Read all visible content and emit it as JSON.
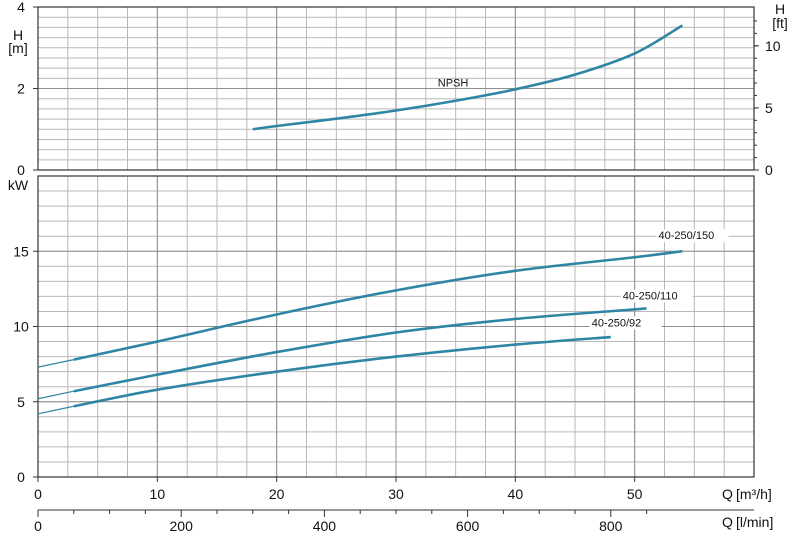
{
  "chart_data": [
    {
      "type": "line",
      "title": "",
      "x_unit": "m³/h",
      "ylabel_left_top": "H",
      "ylabel_left_bottom": "[m]",
      "ylabel_right_top": "H",
      "ylabel_right_bottom": "[ft]",
      "ylim": [
        0,
        4
      ],
      "xlim": [
        0,
        60
      ],
      "yticks_left": [
        0,
        2,
        4
      ],
      "yticks_right": [
        0,
        5,
        10
      ],
      "right_axis_ft_per_m": 3.281,
      "grid": true,
      "series": [
        {
          "name": "NPSH",
          "x": [
            18,
            20,
            25,
            30,
            35,
            40,
            45,
            50,
            54
          ],
          "y": [
            1.0,
            1.08,
            1.26,
            1.46,
            1.7,
            1.98,
            2.34,
            2.86,
            3.55
          ]
        }
      ]
    },
    {
      "type": "line",
      "title": "",
      "ylabel": "kW",
      "xlabel_top": "Q",
      "xlabel_top_unit": "[m³/h]",
      "xlabel_bottom": "Q",
      "xlabel_bottom_unit": "[l/min]",
      "xlim": [
        0,
        60
      ],
      "ylim": [
        0,
        20
      ],
      "yticks": [
        0,
        5,
        10,
        15
      ],
      "xticks_m3h": [
        0,
        10,
        20,
        30,
        40,
        50
      ],
      "xticks_lmin": [
        0,
        200,
        400,
        600,
        800
      ],
      "grid": true,
      "series": [
        {
          "name": "40-250/150",
          "x": [
            0,
            3,
            10,
            20,
            30,
            40,
            50,
            54
          ],
          "y": [
            7.3,
            7.8,
            9.0,
            10.8,
            12.4,
            13.7,
            14.6,
            15.0
          ]
        },
        {
          "name": "40-250/110",
          "x": [
            0,
            3,
            10,
            20,
            30,
            40,
            51
          ],
          "y": [
            5.2,
            5.7,
            6.8,
            8.3,
            9.6,
            10.5,
            11.2
          ]
        },
        {
          "name": "40-250/92",
          "x": [
            0,
            3,
            10,
            20,
            30,
            40,
            48
          ],
          "y": [
            4.2,
            4.7,
            5.8,
            7.0,
            8.0,
            8.8,
            9.3
          ]
        }
      ]
    }
  ]
}
